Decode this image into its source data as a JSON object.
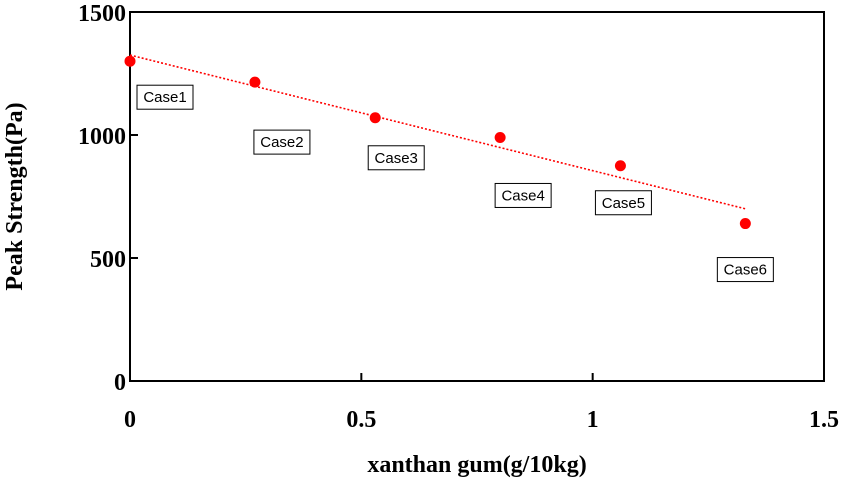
{
  "chart_data": {
    "type": "scatter",
    "xlabel": "xanthan gum(g/10kg)",
    "ylabel": "Peak Strength(Pa)",
    "xlim": [
      0,
      1.5
    ],
    "ylim": [
      0,
      1500
    ],
    "xticks": [
      0,
      0.5,
      1,
      1.5
    ],
    "yticks": [
      0,
      500,
      1000,
      1500
    ],
    "xtick_labels": [
      "0",
      "0.5",
      "1",
      "1.5"
    ],
    "ytick_labels": [
      "0",
      "500",
      "1000",
      "1500"
    ],
    "grid": false,
    "legend": "none",
    "marker_color": "#ff0000",
    "trendline_color": "#ff0000",
    "points": [
      {
        "label": "Case1",
        "x": 0.0,
        "y": 1300
      },
      {
        "label": "Case2",
        "x": 0.27,
        "y": 1215
      },
      {
        "label": "Case3",
        "x": 0.53,
        "y": 1070
      },
      {
        "label": "Case4",
        "x": 0.8,
        "y": 990
      },
      {
        "label": "Case5",
        "x": 1.06,
        "y": 875
      },
      {
        "label": "Case6",
        "x": 1.33,
        "y": 640
      }
    ],
    "trendline": {
      "type": "linear",
      "x": [
        0.0,
        1.33
      ],
      "y": [
        1325,
        700
      ]
    }
  }
}
